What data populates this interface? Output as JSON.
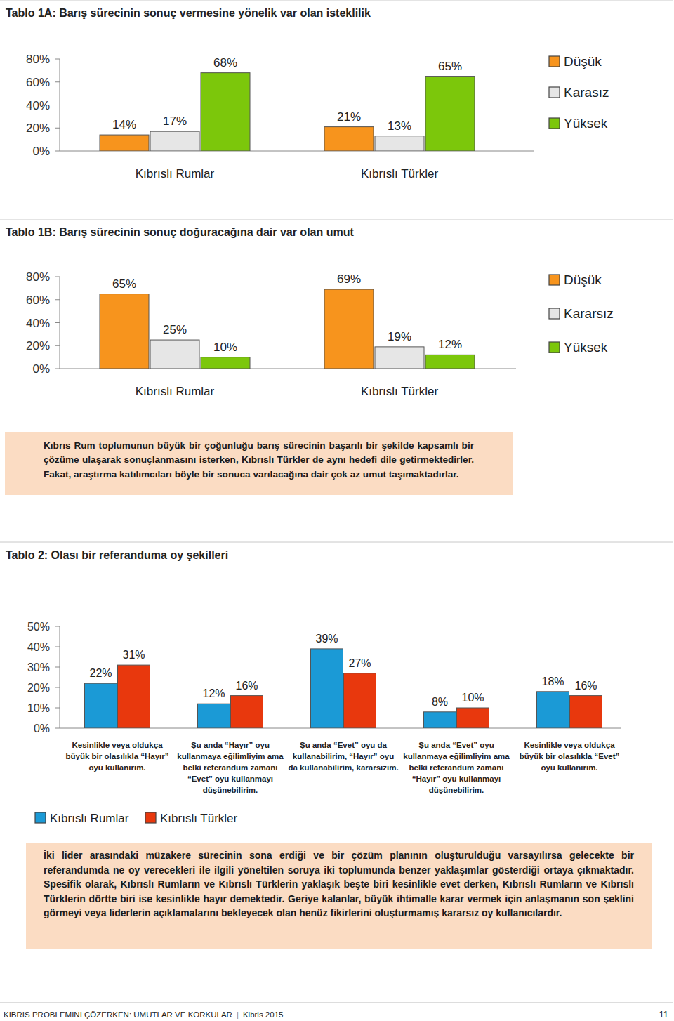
{
  "chart_data": [
    {
      "type": "bar",
      "title": "Tablo 1A: Barış sürecinin sonuç vermesine yönelik var olan isteklilik",
      "categories": [
        "Kıbrıslı Rumlar",
        "Kıbrıslı Türkler"
      ],
      "series": [
        {
          "name": "Düşük",
          "color": "#f7941d",
          "values": [
            14,
            21
          ],
          "value_labels": [
            "14%",
            "21%"
          ]
        },
        {
          "name": "Karasız",
          "color": "#e6e6e6",
          "values": [
            17,
            13
          ],
          "value_labels": [
            "17%",
            "13%"
          ]
        },
        {
          "name": "Yüksek",
          "color": "#7cc70b",
          "values": [
            68,
            65
          ],
          "value_labels": [
            "68%",
            "65%"
          ]
        }
      ],
      "ylim": [
        0,
        80
      ],
      "yticks": [
        {
          "value": 0,
          "label": "0%"
        },
        {
          "value": 20,
          "label": "20%"
        },
        {
          "value": 40,
          "label": "40%"
        },
        {
          "value": 60,
          "label": "60%"
        },
        {
          "value": 80,
          "label": "80%"
        }
      ],
      "grid": false,
      "legend": "right",
      "data_labels": true
    },
    {
      "type": "bar",
      "title": "Tablo 1B: Barış sürecinin sonuç doğuracağına dair var olan umut",
      "categories": [
        "Kıbrıslı Rumlar",
        "Kıbrıslı Türkler"
      ],
      "series": [
        {
          "name": "Düşük",
          "color": "#f7941d",
          "values": [
            65,
            69
          ],
          "value_labels": [
            "65%",
            "69%"
          ]
        },
        {
          "name": "Kararsız",
          "color": "#e6e6e6",
          "values": [
            25,
            19
          ],
          "value_labels": [
            "25%",
            "19%"
          ]
        },
        {
          "name": "Yüksek",
          "color": "#7cc70b",
          "values": [
            10,
            12
          ],
          "value_labels": [
            "10%",
            "12%"
          ]
        }
      ],
      "ylim": [
        0,
        80
      ],
      "yticks": [
        {
          "value": 0,
          "label": "0%"
        },
        {
          "value": 20,
          "label": "20%"
        },
        {
          "value": 40,
          "label": "40%"
        },
        {
          "value": 60,
          "label": "60%"
        },
        {
          "value": 80,
          "label": "80%"
        }
      ],
      "grid": false,
      "legend": "right",
      "data_labels": true
    },
    {
      "type": "bar",
      "title": "Tablo 2: Olası bir referanduma oy şekilleri",
      "categories": [
        "Kesinlikle veya oldukça büyük bir olasılıkla “Hayır” oyu kullanırım.",
        "Şu anda “Hayır” oyu kullanmaya eğilimliyim ama belki referandum zamanı “Evet” oyu kullanmayı düşünebilirim.",
        "Şu anda “Evet” oyu da kullanabilirim, “Hayır” oyu da kullanabilirim, kararsızım.",
        "Şu anda “Evet” oyu kullanmaya eğilimliyim ama belki referandum zamanı “Hayır” oyu kullanmayı düşünebilirim.",
        "Kesinlikle veya oldukça büyük bir olasılıkla “Evet” oyu kullanırım."
      ],
      "series": [
        {
          "name": "Kıbrıslı Rumlar",
          "color": "#1b9ad6",
          "values": [
            22,
            12,
            39,
            8,
            18
          ],
          "value_labels": [
            "22%",
            "12%",
            "39%",
            "8%",
            "18%"
          ]
        },
        {
          "name": "Kıbrıslı Türkler",
          "color": "#e8380d",
          "values": [
            31,
            16,
            27,
            10,
            16
          ],
          "value_labels": [
            "31%",
            "16%",
            "27%",
            "10%",
            "16%"
          ]
        }
      ],
      "ylim": [
        0,
        50
      ],
      "yticks": [
        {
          "value": 0,
          "label": "0%"
        },
        {
          "value": 10,
          "label": "10%"
        },
        {
          "value": 20,
          "label": "20%"
        },
        {
          "value": 30,
          "label": "30%"
        },
        {
          "value": 40,
          "label": "40%"
        },
        {
          "value": 50,
          "label": "50%"
        }
      ],
      "grid": false,
      "legend": "bottom-left",
      "data_labels": true
    }
  ],
  "notes": [
    "Kıbrıs Rum toplumunun büyük bir çoğunluğu barış sürecinin başarılı bir şekilde kapsamlı bir çözüme ulaşarak sonuçlanmasını isterken, Kıbrıslı Türkler de aynı hedefi dile getirmektedirler. Fakat, araştırma katılımcıları böyle bir sonuca varılacağına dair çok az umut taşımaktadırlar.",
    "İki lider arasındaki müzakere sürecinin sona erdiği ve bir çözüm planının oluşturulduğu varsayılırsa gelecekte bir referandumda ne oy verecekleri ile ilgili yöneltilen soruya iki toplumunda benzer yaklaşımlar gösterdiği ortaya çıkmaktadır. Spesifik olarak, Kıbrıslı Rumların ve Kıbrıslı Türklerin yaklaşık beşte biri kesinlikle evet derken, Kıbrıslı Rumların ve Kıbrıslı Türklerin dörtte biri ise kesinlikle hayır demektedir. Geriye kalanlar, büyük ihtimalle karar vermek için anlaşmanın son şeklini görmeyi veya liderlerin açıklamalarını bekleyecek olan henüz fikirlerini oluşturmamış kararsız oy kullanıcılardır."
  ],
  "footer": {
    "title": "KIBRIS PROBLEMINI ÇÖZERKEN: UMUTLAR VE KORKULAR",
    "separator": "|",
    "year": "Kibris 2015",
    "page": "11"
  }
}
